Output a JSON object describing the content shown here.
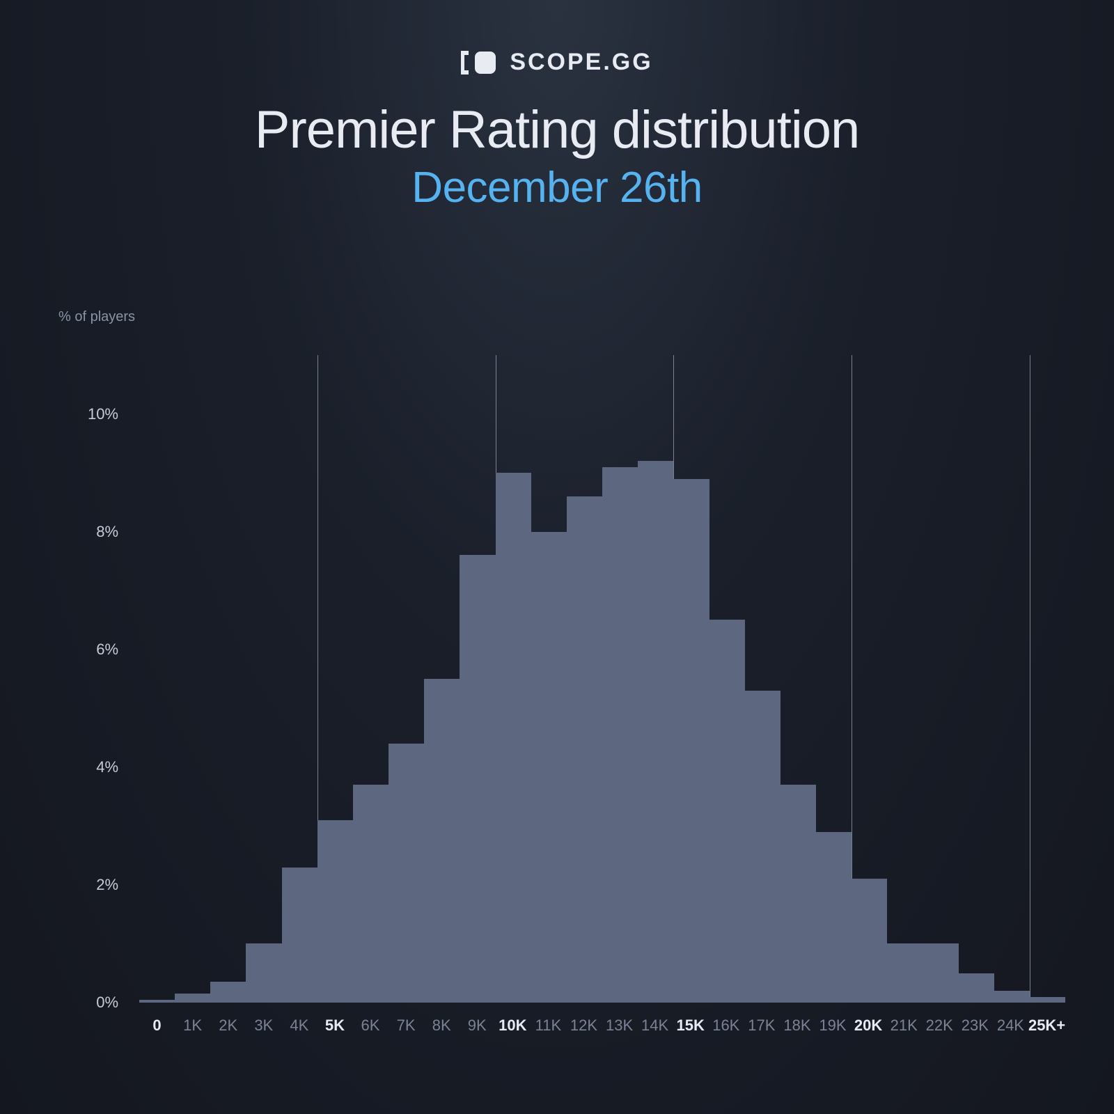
{
  "brand": {
    "name": "SCOPE.GG",
    "logo_fontsize": 34,
    "logo_letterspacing": 3,
    "logo_color": "#e8ecf2",
    "mark_color": "#e8ecf2"
  },
  "title": {
    "main": "Premier Rating distribution",
    "sub": "December 26th",
    "main_color": "#e8ecf2",
    "sub_color": "#56b3f0"
  },
  "chart": {
    "type": "histogram",
    "y_axis_title": "% of players",
    "y_axis_color": "#8a94a6",
    "y_ticks": [
      {
        "label": "10%",
        "value": 10
      },
      {
        "label": "8%",
        "value": 8
      },
      {
        "label": "6%",
        "value": 6
      },
      {
        "label": "4%",
        "value": 4
      },
      {
        "label": "2%",
        "value": 2
      },
      {
        "label": "0%",
        "value": 0
      }
    ],
    "y_tick_color": "#c5ccd8",
    "y_max": 11,
    "x_labels": [
      "0",
      "1K",
      "2K",
      "3K",
      "4K",
      "5K",
      "6K",
      "7K",
      "8K",
      "9K",
      "10K",
      "11K",
      "12K",
      "13K",
      "14K",
      "15K",
      "16K",
      "17K",
      "18K",
      "19K",
      "20K",
      "21K",
      "22K",
      "23K",
      "24K",
      "25K+"
    ],
    "x_highlight_indices": [
      0,
      5,
      10,
      15,
      20,
      25
    ],
    "x_label_color": "#7a8396",
    "x_label_highlight_color": "#e6eaf2",
    "values": [
      0.05,
      0.15,
      0.35,
      1.0,
      2.3,
      3.1,
      3.7,
      4.4,
      5.5,
      7.6,
      9.0,
      8.0,
      8.6,
      9.1,
      9.2,
      8.9,
      6.5,
      5.3,
      3.7,
      2.9,
      2.1,
      1.0,
      1.0,
      0.5,
      0.2,
      0.1
    ],
    "bar_color": "#5d6880",
    "baseline_color": "#6a7388",
    "gridline_color": "rgba(200,210,225,0.55)",
    "gridline_at_indices": [
      5,
      10,
      15,
      20,
      25
    ],
    "background": "transparent"
  }
}
